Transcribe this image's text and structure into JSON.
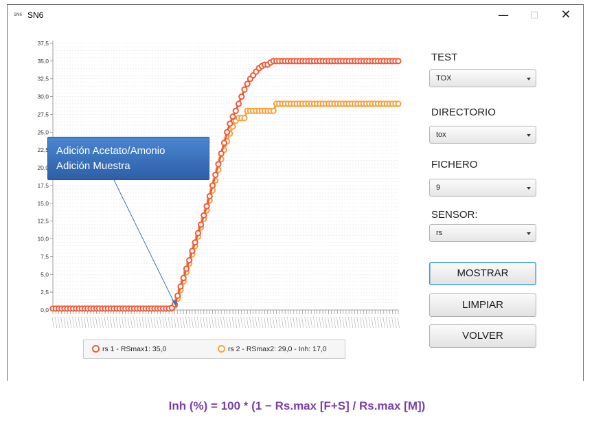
{
  "window": {
    "icon_text": "SN6",
    "title": "SN6",
    "minimize_glyph": "—",
    "maximize_glyph": "□",
    "close_glyph": "✕"
  },
  "chart_data": {
    "type": "line",
    "y_ticks": [
      "37,5",
      "35,0",
      "32,5",
      "30,0",
      "27,5",
      "25,0",
      "22,5",
      "20,0",
      "17,5",
      "15,0",
      "12,5",
      "10,0",
      "7,5",
      "5,0",
      "2,5",
      "0,0"
    ],
    "ylim": [
      0,
      37.5
    ],
    "grid": true,
    "legend_placement": "bottom",
    "series": [
      {
        "name": "rs 1 - RSmax1: 35,0",
        "color": "#f05a38",
        "values": [
          0.2,
          0.2,
          0.2,
          0.2,
          0.2,
          0.2,
          0.2,
          0.2,
          0.2,
          0.2,
          0.2,
          0.2,
          0.2,
          0.2,
          0.2,
          0.2,
          0.2,
          0.2,
          0.2,
          0.2,
          0.2,
          0.2,
          0.2,
          0.2,
          0.2,
          0.2,
          0.2,
          0.2,
          0.2,
          0.2,
          0.2,
          0.2,
          0.2,
          0.2,
          0.2,
          0.2,
          0.2,
          0.2,
          0.2,
          0.2,
          0.2,
          0.3,
          0.8,
          2.0,
          3.3,
          4.5,
          5.8,
          7.0,
          8.3,
          9.5,
          10.8,
          12.0,
          13.3,
          14.6,
          16.0,
          17.5,
          19.0,
          20.5,
          22.0,
          23.5,
          25.0,
          26.2,
          27.2,
          28.0,
          29.0,
          30.0,
          31.0,
          31.8,
          32.5,
          33.0,
          33.5,
          34.0,
          34.3,
          34.5,
          34.5,
          34.8,
          35.0,
          35.0,
          35.0,
          35.0,
          35.0,
          35.0,
          35.0,
          35.0,
          35.0,
          35.0,
          35.0,
          35.0,
          35.0,
          35.0,
          35.0,
          35.0,
          35.0,
          35.0,
          35.0,
          35.0,
          35.0,
          35.0,
          35.0,
          35.0,
          35.0,
          35.0,
          35.0,
          35.0,
          35.0,
          35.0,
          35.0,
          35.0,
          35.0,
          35.0,
          35.0,
          35.0,
          35.0,
          35.0,
          35.0,
          35.0,
          35.0,
          35.0,
          35.0,
          35.0
        ]
      },
      {
        "name": "rs 2 - RSmax2: 29,0 - Inh: 17,0",
        "color": "#f8a13a",
        "values": [
          0.2,
          0.2,
          0.2,
          0.2,
          0.2,
          0.2,
          0.2,
          0.2,
          0.2,
          0.2,
          0.2,
          0.2,
          0.2,
          0.2,
          0.2,
          0.2,
          0.2,
          0.2,
          0.2,
          0.2,
          0.2,
          0.2,
          0.2,
          0.2,
          0.2,
          0.2,
          0.2,
          0.2,
          0.2,
          0.2,
          0.2,
          0.2,
          0.2,
          0.2,
          0.2,
          0.2,
          0.2,
          0.2,
          0.2,
          0.2,
          0.2,
          0.2,
          0.6,
          1.6,
          2.8,
          4.0,
          5.3,
          6.5,
          7.8,
          9.0,
          10.3,
          11.6,
          12.8,
          14.0,
          15.4,
          16.8,
          18.2,
          19.7,
          21.2,
          22.5,
          23.7,
          24.8,
          25.8,
          26.6,
          27.0,
          27.0,
          27.0,
          28.0,
          28.0,
          28.0,
          28.0,
          28.0,
          28.0,
          28.0,
          28.0,
          28.0,
          28.0,
          29.0,
          29.0,
          29.0,
          29.0,
          29.0,
          29.0,
          29.0,
          29.0,
          29.0,
          29.0,
          29.0,
          29.0,
          29.0,
          29.0,
          29.0,
          29.0,
          29.0,
          29.0,
          29.0,
          29.0,
          29.0,
          29.0,
          29.0,
          29.0,
          29.0,
          29.0,
          29.0,
          29.0,
          29.0,
          29.0,
          29.0,
          29.0,
          29.0,
          29.0,
          29.0,
          29.0,
          29.0,
          29.0,
          29.0,
          29.0,
          29.0,
          29.0,
          29.0
        ]
      }
    ],
    "annotation": [
      "Adición Acetato/Amonio",
      "Adición Muestra"
    ]
  },
  "controls": {
    "test_label": "TEST",
    "test_value": "TOX",
    "directorio_label": "DIRECTORIO",
    "directorio_value": "tox",
    "fichero_label": "FICHERO",
    "fichero_value": "9",
    "sensor_label": "SENSOR:",
    "sensor_value": "rs",
    "mostrar_label": "MOSTRAR",
    "limpiar_label": "LIMPIAR",
    "volver_label": "VOLVER"
  },
  "formula": "Inh (%) = 100 * (1 − Rs.max [F+S] / Rs.max [M])"
}
